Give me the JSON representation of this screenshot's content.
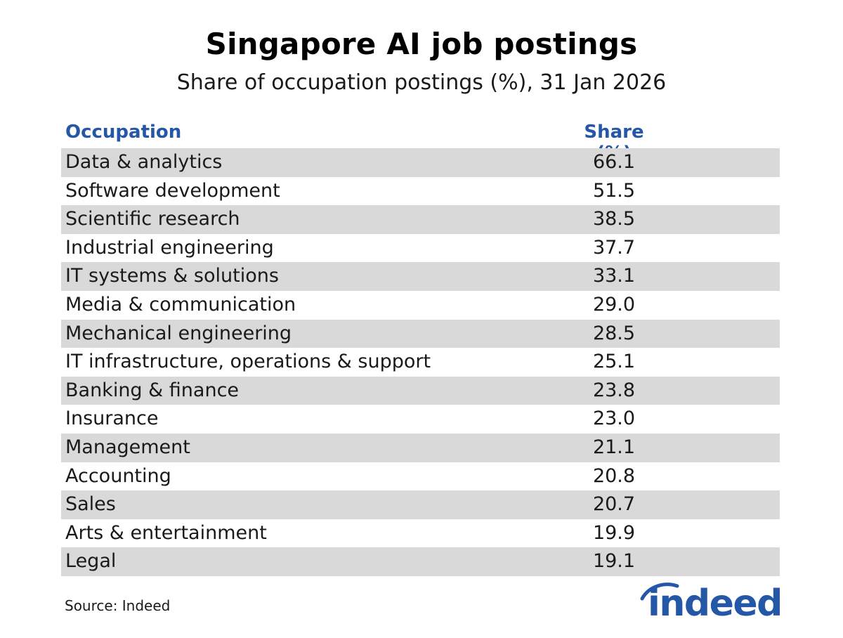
{
  "title": "Singapore AI job postings",
  "subtitle": "Share of occupation postings (%), 31 Jan 2026",
  "source": "Source: Indeed",
  "brand": {
    "name": "indeed",
    "color": "#2557a7"
  },
  "colors": {
    "header_text": "#2557a7",
    "row_shade": "#d9d9d9"
  },
  "chart_data": {
    "type": "table",
    "columns": [
      "Occupation",
      "Share (%)"
    ],
    "rows": [
      {
        "occupation": "Data & analytics",
        "share": "66.1"
      },
      {
        "occupation": "Software development",
        "share": "51.5"
      },
      {
        "occupation": "Scientific research",
        "share": "38.5"
      },
      {
        "occupation": "Industrial engineering",
        "share": "37.7"
      },
      {
        "occupation": "IT systems & solutions",
        "share": "33.1"
      },
      {
        "occupation": "Media & communication",
        "share": "29.0"
      },
      {
        "occupation": "Mechanical engineering",
        "share": "28.5"
      },
      {
        "occupation": "IT infrastructure, operations & support",
        "share": "25.1"
      },
      {
        "occupation": "Banking & finance",
        "share": "23.8"
      },
      {
        "occupation": "Insurance",
        "share": "23.0"
      },
      {
        "occupation": "Management",
        "share": "21.1"
      },
      {
        "occupation": "Accounting",
        "share": "20.8"
      },
      {
        "occupation": "Sales",
        "share": "20.7"
      },
      {
        "occupation": "Arts & entertainment",
        "share": "19.9"
      },
      {
        "occupation": "Legal",
        "share": "19.1"
      }
    ]
  }
}
